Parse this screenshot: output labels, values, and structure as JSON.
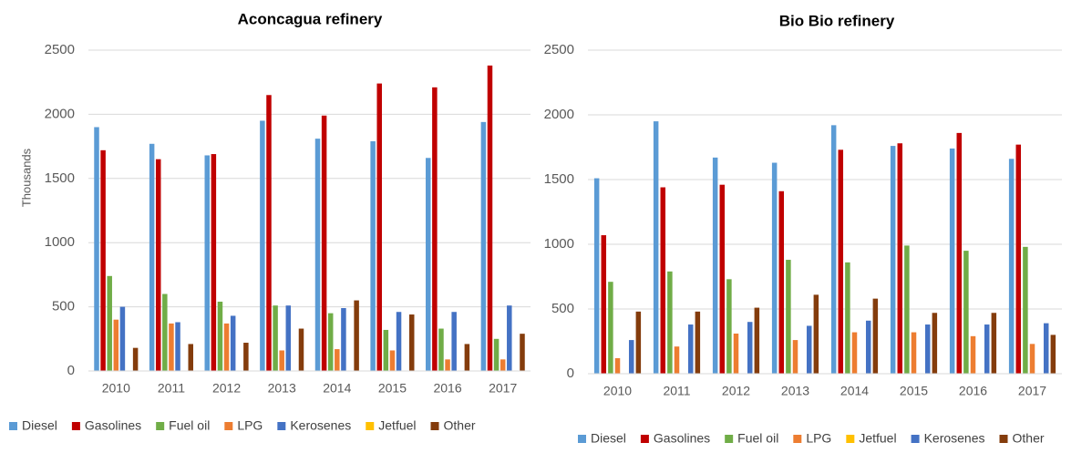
{
  "chart_data": [
    {
      "type": "bar",
      "title": "Aconcagua refinery",
      "y_label": "Thousands",
      "categories": [
        "2010",
        "2011",
        "2012",
        "2013",
        "2014",
        "2015",
        "2016",
        "2017"
      ],
      "ylim": [
        0,
        2500
      ],
      "yticks": [
        0,
        500,
        1000,
        1500,
        2000,
        2500
      ],
      "grid": true,
      "legend": "bottom",
      "series": [
        {
          "name": "Diesel",
          "color": "#5b9bd5",
          "values": [
            1900,
            1770,
            1680,
            1950,
            1810,
            1790,
            1660,
            1940
          ]
        },
        {
          "name": "Gasolines",
          "color": "#c00000",
          "values": [
            1720,
            1650,
            1690,
            2150,
            1990,
            2240,
            2210,
            2380
          ]
        },
        {
          "name": "Fuel oil",
          "color": "#70ad47",
          "values": [
            740,
            600,
            540,
            510,
            450,
            320,
            330,
            250
          ]
        },
        {
          "name": "LPG",
          "color": "#ed7d31",
          "values": [
            400,
            370,
            370,
            160,
            170,
            160,
            90,
            90
          ]
        },
        {
          "name": "Kerosenes",
          "color": "#4472c4",
          "values": [
            500,
            380,
            430,
            510,
            490,
            460,
            460,
            510
          ]
        },
        {
          "name": "Jetfuel",
          "color": "#ffc000",
          "values": [
            0,
            0,
            0,
            0,
            0,
            0,
            0,
            0
          ]
        },
        {
          "name": "Other",
          "color": "#843c0c",
          "values": [
            180,
            210,
            220,
            330,
            550,
            440,
            210,
            290
          ]
        }
      ]
    },
    {
      "type": "bar",
      "title": "Bio Bio refinery",
      "categories": [
        "2010",
        "2011",
        "2012",
        "2013",
        "2014",
        "2015",
        "2016",
        "2017"
      ],
      "ylim": [
        0,
        2500
      ],
      "yticks": [
        0,
        500,
        1000,
        1500,
        2000,
        2500
      ],
      "grid": true,
      "legend": "bottom",
      "series": [
        {
          "name": "Diesel",
          "color": "#5b9bd5",
          "values": [
            1510,
            1950,
            1670,
            1630,
            1920,
            1760,
            1740,
            1660
          ]
        },
        {
          "name": "Gasolines",
          "color": "#c00000",
          "values": [
            1070,
            1440,
            1460,
            1410,
            1730,
            1780,
            1860,
            1770
          ]
        },
        {
          "name": "Fuel oil",
          "color": "#70ad47",
          "values": [
            710,
            790,
            730,
            880,
            860,
            990,
            950,
            980
          ]
        },
        {
          "name": "LPG",
          "color": "#ed7d31",
          "values": [
            120,
            210,
            310,
            260,
            320,
            320,
            290,
            230
          ]
        },
        {
          "name": "Jetfuel",
          "color": "#ffc000",
          "values": [
            0,
            0,
            0,
            0,
            0,
            0,
            0,
            0
          ]
        },
        {
          "name": "Kerosenes",
          "color": "#4472c4",
          "values": [
            260,
            380,
            400,
            370,
            410,
            380,
            380,
            390
          ]
        },
        {
          "name": "Other",
          "color": "#843c0c",
          "values": [
            480,
            480,
            510,
            610,
            580,
            470,
            470,
            300
          ]
        }
      ]
    }
  ]
}
